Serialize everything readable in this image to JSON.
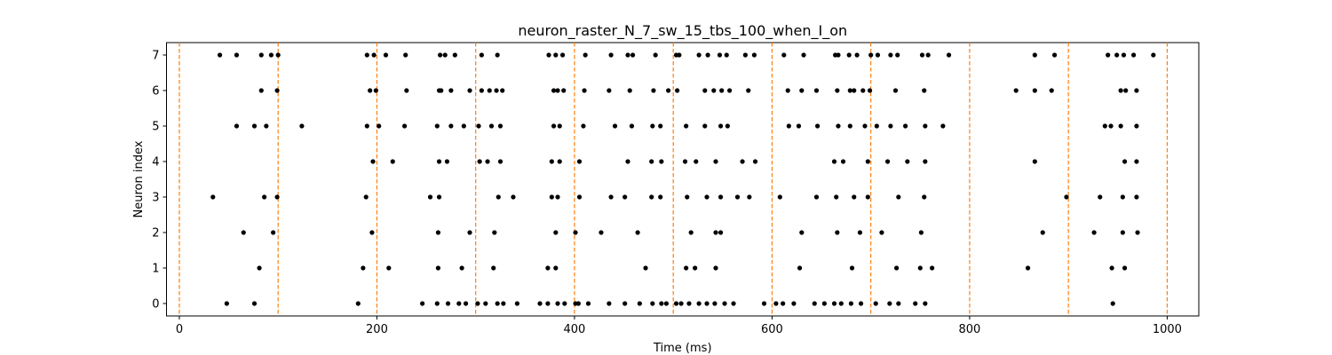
{
  "chart_data": {
    "type": "scatter",
    "title": "neuron_raster_N_7_sw_15_tbs_100_when_I_on",
    "xlabel": "Time (ms)",
    "ylabel": "Neuron index",
    "xlim": [
      -13,
      1032
    ],
    "ylim": [
      -0.35,
      7.35
    ],
    "x_ticks": [
      0,
      200,
      400,
      600,
      800,
      1000
    ],
    "y_ticks": [
      0,
      1,
      2,
      3,
      4,
      5,
      6,
      7
    ],
    "grid": false,
    "point_color": "#000000",
    "marker_lines": {
      "x": [
        0,
        100,
        200,
        300,
        400,
        500,
        600,
        700,
        800,
        900,
        1000
      ],
      "color": "#ff7f0e",
      "style": "dashed"
    },
    "series": [
      {
        "neuron": 0,
        "x": [
          48,
          76,
          181,
          246,
          261,
          272,
          283,
          290,
          302,
          310,
          322,
          328,
          342,
          365,
          373,
          383,
          390,
          401,
          404,
          414,
          435,
          451,
          466,
          479,
          488,
          493,
          503,
          508,
          516,
          526,
          534,
          542,
          552,
          561,
          592,
          604,
          611,
          622,
          643,
          653,
          663,
          670,
          680,
          690,
          705,
          719,
          728,
          745,
          755,
          945
        ]
      },
      {
        "neuron": 1,
        "x": [
          81,
          186,
          212,
          262,
          286,
          318,
          373,
          381,
          472,
          513,
          522,
          543,
          628,
          681,
          726,
          750,
          762,
          859,
          944,
          957
        ]
      },
      {
        "neuron": 2,
        "x": [
          65,
          95,
          195,
          262,
          294,
          319,
          381,
          401,
          427,
          464,
          518,
          543,
          548,
          630,
          666,
          689,
          711,
          751,
          874,
          926,
          955,
          970
        ]
      },
      {
        "neuron": 3,
        "x": [
          34,
          86,
          99,
          189,
          254,
          263,
          323,
          338,
          377,
          383,
          405,
          437,
          451,
          478,
          487,
          514,
          534,
          548,
          565,
          577,
          608,
          645,
          665,
          683,
          697,
          728,
          754,
          898,
          932,
          955,
          969
        ]
      },
      {
        "neuron": 4,
        "x": [
          196,
          216,
          263,
          271,
          304,
          312,
          325,
          377,
          385,
          405,
          454,
          478,
          488,
          512,
          523,
          543,
          570,
          583,
          663,
          672,
          697,
          717,
          737,
          755,
          866,
          957,
          969
        ]
      },
      {
        "neuron": 5,
        "x": [
          58,
          76,
          88,
          124,
          190,
          202,
          228,
          261,
          275,
          288,
          303,
          316,
          325,
          379,
          385,
          409,
          441,
          458,
          479,
          487,
          513,
          532,
          548,
          555,
          617,
          627,
          646,
          667,
          679,
          694,
          706,
          720,
          735,
          755,
          773,
          937,
          943,
          953,
          969
        ]
      },
      {
        "neuron": 6,
        "x": [
          83,
          99,
          193,
          199,
          230,
          263,
          265,
          275,
          294,
          306,
          314,
          321,
          327,
          379,
          383,
          389,
          410,
          435,
          456,
          480,
          495,
          504,
          532,
          541,
          549,
          557,
          576,
          616,
          630,
          645,
          666,
          679,
          683,
          692,
          699,
          725,
          754,
          847,
          866,
          883,
          953,
          958,
          969
        ]
      },
      {
        "neuron": 7,
        "x": [
          41,
          58,
          83,
          93,
          100,
          190,
          197,
          209,
          229,
          264,
          269,
          279,
          306,
          322,
          374,
          381,
          388,
          411,
          437,
          454,
          459,
          482,
          503,
          506,
          526,
          535,
          547,
          554,
          573,
          582,
          612,
          632,
          664,
          667,
          678,
          686,
          700,
          707,
          720,
          727,
          752,
          758,
          779,
          866,
          886,
          940,
          949,
          956,
          966,
          986
        ]
      }
    ]
  }
}
